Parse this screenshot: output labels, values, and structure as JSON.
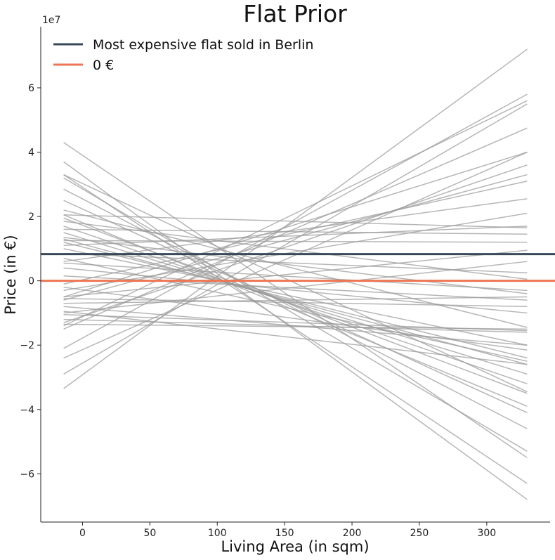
{
  "chart_data": {
    "type": "line",
    "title": "Flat Prior",
    "xlabel": "Living Area (in sqm)",
    "ylabel": "Price (in €)",
    "y_offset_label": "1e7",
    "x_ticks": [
      0,
      50,
      100,
      150,
      200,
      250,
      300
    ],
    "y_ticks": [
      -6,
      -4,
      -2,
      0,
      2,
      4,
      6
    ],
    "y_tick_labels": [
      "−6",
      "−4",
      "−2",
      "0",
      "2",
      "4",
      "6"
    ],
    "xlim": [
      -31,
      347
    ],
    "ylim": [
      -75,
      79
    ],
    "y_unit_scale": "1e7",
    "grid": false,
    "legend_position": "top-left",
    "colors": {
      "prior_lines": "#9a9a9a",
      "berlin_line": "#37495a",
      "zero_line": "#ee7554"
    },
    "reference_lines": [
      {
        "name": "Most expensive flat sold in Berlin",
        "y": 0.83,
        "color": "#37495a"
      },
      {
        "name": "0 €",
        "y": 0,
        "color": "#ee7554"
      }
    ],
    "prior_samples": {
      "x": [
        -14,
        330
      ],
      "y_pairs": [
        [
          -3.35,
          7.2
        ],
        [
          4.3,
          -5.5
        ],
        [
          3.7,
          -6.8
        ],
        [
          3.3,
          -6.3
        ],
        [
          3.2,
          -5.3
        ],
        [
          2.85,
          -4.6
        ],
        [
          2.5,
          -4.1
        ],
        [
          2.05,
          -3.9
        ],
        [
          1.95,
          -3.5
        ],
        [
          1.7,
          -3.2
        ],
        [
          1.5,
          -2.9
        ],
        [
          1.3,
          -2.6
        ],
        [
          1.2,
          -2.4
        ],
        [
          1.0,
          -2.0
        ],
        [
          -2.1,
          5.8
        ],
        [
          -2.9,
          5.5
        ],
        [
          -1.4,
          5.6
        ],
        [
          -2.4,
          4.0
        ],
        [
          -1.5,
          4.75
        ],
        [
          -0.5,
          4.0
        ],
        [
          -1.3,
          3.6
        ],
        [
          -0.6,
          3.3
        ],
        [
          -0.1,
          3.1
        ],
        [
          0.6,
          2.55
        ],
        [
          -0.3,
          2.1
        ],
        [
          1.1,
          1.7
        ],
        [
          2.05,
          1.65
        ],
        [
          1.6,
          1.45
        ],
        [
          1.25,
          1.2
        ],
        [
          -0.5,
          0.95
        ],
        [
          0.85,
          0.25
        ],
        [
          0.55,
          -0.3
        ],
        [
          0.15,
          -0.6
        ],
        [
          -0.55,
          -0.8
        ],
        [
          -1.05,
          -1.55
        ],
        [
          -1.35,
          -1.5
        ],
        [
          -1.2,
          -1.6
        ],
        [
          -0.8,
          -2.0
        ],
        [
          -0.95,
          -2.6
        ],
        [
          -0.2,
          -2.15
        ],
        [
          0.4,
          -1.0
        ],
        [
          1.85,
          0.05
        ],
        [
          2.2,
          -1.45
        ],
        [
          3.3,
          -3.45
        ],
        [
          1.35,
          -0.4
        ],
        [
          -0.7,
          -0.5
        ],
        [
          -1.0,
          0.6
        ],
        [
          0.7,
          -2.5
        ]
      ]
    }
  }
}
